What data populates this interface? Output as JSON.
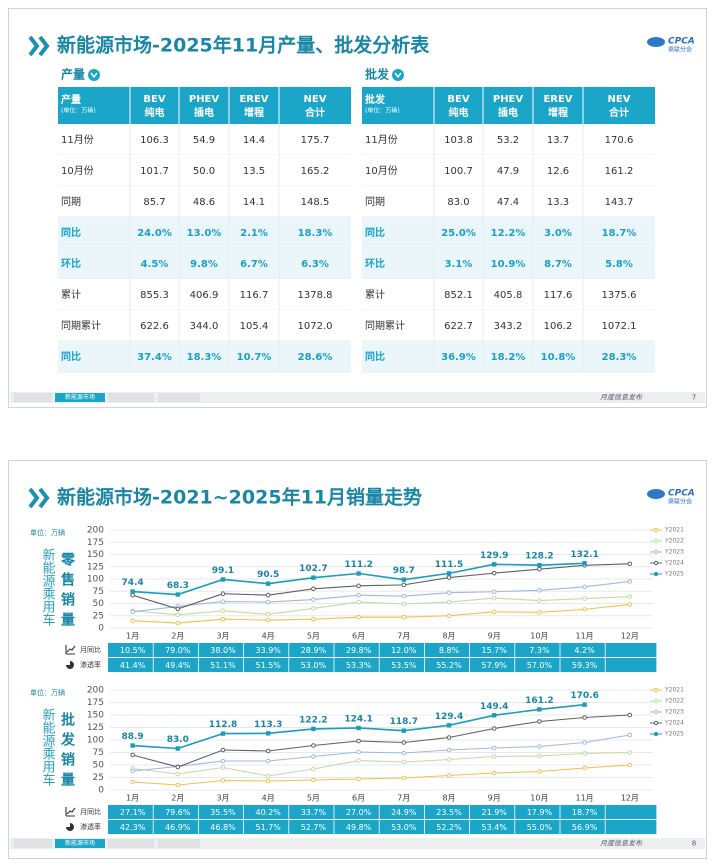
{
  "slide1": {
    "title": "新能源市场-2025年11月产量、批发分析表",
    "logo": {
      "text": "CPCA",
      "sub": "乘联分会"
    },
    "footer_tab": "新能源市场",
    "footer_note": "月度信息发布",
    "page": "7",
    "tables": [
      {
        "section": "产量",
        "corner": "产量",
        "unit": "(单位：万辆)",
        "columns": [
          {
            "code": "BEV",
            "name": "纯电"
          },
          {
            "code": "PHEV",
            "name": "插电"
          },
          {
            "code": "EREV",
            "name": "增程"
          },
          {
            "code": "NEV",
            "name": "合计"
          }
        ],
        "rows": [
          [
            "11月份",
            "106.3",
            "54.9",
            "14.4",
            "175.7"
          ],
          [
            "10月份",
            "101.7",
            "50.0",
            "13.5",
            "165.2"
          ],
          [
            "同期",
            "85.7",
            "48.6",
            "14.1",
            "148.5"
          ],
          [
            "同比",
            "24.0%",
            "13.0%",
            "2.1%",
            "18.3%"
          ],
          [
            "环比",
            "4.5%",
            "9.8%",
            "6.7%",
            "6.3%"
          ],
          [
            "累计",
            "855.3",
            "406.9",
            "116.7",
            "1378.8"
          ],
          [
            "同期累计",
            "622.6",
            "344.0",
            "105.4",
            "1072.0"
          ],
          [
            "同比",
            "37.4%",
            "18.3%",
            "10.7%",
            "28.6%"
          ]
        ]
      },
      {
        "section": "批发",
        "corner": "批发",
        "unit": "(单位：万辆)",
        "columns": [
          {
            "code": "BEV",
            "name": "纯电"
          },
          {
            "code": "PHEV",
            "name": "插电"
          },
          {
            "code": "EREV",
            "name": "增程"
          },
          {
            "code": "NEV",
            "name": "合计"
          }
        ],
        "rows": [
          [
            "11月份",
            "103.8",
            "53.2",
            "13.7",
            "170.6"
          ],
          [
            "10月份",
            "100.7",
            "47.9",
            "12.6",
            "161.2"
          ],
          [
            "同期",
            "83.0",
            "47.4",
            "13.3",
            "143.7"
          ],
          [
            "同比",
            "25.0%",
            "12.2%",
            "3.0%",
            "18.7%"
          ],
          [
            "环比",
            "3.1%",
            "10.9%",
            "8.7%",
            "5.8%"
          ],
          [
            "累计",
            "852.1",
            "405.8",
            "117.6",
            "1375.6"
          ],
          [
            "同期累计",
            "622.7",
            "343.2",
            "106.2",
            "1072.1"
          ],
          [
            "同比",
            "36.9%",
            "18.2%",
            "10.8%",
            "28.3%"
          ]
        ]
      }
    ]
  },
  "slide2": {
    "title": "新能源市场-2021~2025年11月销量走势",
    "logo": {
      "text": "CPCA",
      "sub": "乘联分会"
    },
    "footer_tab": "新能源市场",
    "footer_note": "月度信息发布",
    "page": "8"
  },
  "chart_data": [
    {
      "type": "line",
      "title": "零售销量",
      "unit": "单位：万辆",
      "side_label": "新能源乘用车",
      "categories": [
        "1月",
        "2月",
        "3月",
        "4月",
        "5月",
        "6月",
        "7月",
        "8月",
        "9月",
        "10月",
        "11月",
        "12月"
      ],
      "ylim": [
        0,
        200
      ],
      "yticks": [
        0,
        25,
        50,
        75,
        100,
        125,
        150,
        175,
        200
      ],
      "grid": true,
      "legend": "right",
      "series": [
        {
          "name": "Y2021",
          "color": "#f2c14e",
          "values": [
            15,
            10,
            18,
            16,
            18,
            22,
            22,
            25,
            33,
            32,
            38,
            48
          ]
        },
        {
          "name": "Y2022",
          "color": "#c7d8a6",
          "values": [
            35,
            27,
            35,
            28,
            40,
            53,
            49,
            53,
            61,
            56,
            60,
            64
          ]
        },
        {
          "name": "Y2023",
          "color": "#9fb9e3",
          "values": [
            33,
            44,
            54,
            53,
            58,
            67,
            65,
            72,
            74,
            77,
            84,
            95
          ]
        },
        {
          "name": "Y2024",
          "color": "#606060",
          "values": [
            67,
            39,
            70,
            67,
            80,
            86,
            88,
            103,
            112,
            120,
            128,
            131
          ]
        },
        {
          "name": "Y2025",
          "color": "#1b9cbb",
          "values": [
            74.4,
            68.3,
            99.1,
            90.5,
            102.7,
            111.2,
            98.7,
            111.5,
            129.9,
            128.2,
            132.1,
            null
          ]
        }
      ],
      "rows": [
        {
          "label": "月同比",
          "values": [
            "10.5%",
            "79.0%",
            "38.0%",
            "33.9%",
            "28.9%",
            "29.8%",
            "12.0%",
            "8.8%",
            "15.7%",
            "7.3%",
            "4.2%"
          ]
        },
        {
          "label": "渗透率",
          "values": [
            "41.4%",
            "49.4%",
            "51.1%",
            "51.5%",
            "53.0%",
            "53.3%",
            "53.5%",
            "55.2%",
            "57.9%",
            "57.0%",
            "59.3%"
          ]
        }
      ]
    },
    {
      "type": "line",
      "title": "批发销量",
      "unit": "单位：万辆",
      "side_label": "新能源乘用车",
      "categories": [
        "1月",
        "2月",
        "3月",
        "4月",
        "5月",
        "6月",
        "7月",
        "8月",
        "9月",
        "10月",
        "11月",
        "12月"
      ],
      "ylim": [
        0,
        200
      ],
      "yticks": [
        0,
        25,
        50,
        75,
        100,
        125,
        150,
        175,
        200
      ],
      "grid": true,
      "legend": "right",
      "series": [
        {
          "name": "Y2021",
          "color": "#f2c14e",
          "values": [
            16,
            10,
            19,
            18,
            20,
            22,
            24,
            29,
            34,
            37,
            44,
            50
          ]
        },
        {
          "name": "Y2022",
          "color": "#c7d8a6",
          "values": [
            43,
            32,
            45,
            28,
            42,
            59,
            56,
            61,
            67,
            68,
            73,
            75
          ]
        },
        {
          "name": "Y2023",
          "color": "#9fb9e3",
          "values": [
            38,
            47,
            58,
            58,
            67,
            76,
            74,
            80,
            84,
            87,
            95,
            110
          ]
        },
        {
          "name": "Y2024",
          "color": "#606060",
          "values": [
            70,
            46,
            80,
            78,
            89,
            98,
            95,
            105,
            123,
            137,
            145,
            150
          ]
        },
        {
          "name": "Y2025",
          "color": "#1b9cbb",
          "values": [
            88.9,
            83.0,
            112.8,
            113.3,
            122.2,
            124.1,
            118.7,
            129.4,
            149.4,
            161.2,
            170.6,
            null
          ],
          "value_labels": [
            "88.9",
            "83.0",
            "112.8",
            "113.3",
            "122.2",
            "124.1",
            "118.7",
            "129.4",
            "149.4",
            "161.2",
            "170.6",
            null
          ]
        }
      ],
      "rows": [
        {
          "label": "月同比",
          "values": [
            "27.1%",
            "79.6%",
            "35.5%",
            "40.2%",
            "33.7%",
            "27.0%",
            "24.9%",
            "23.5%",
            "21.9%",
            "17.9%",
            "18.7%"
          ]
        },
        {
          "label": "渗透率",
          "values": [
            "42.3%",
            "46.9%",
            "46.8%",
            "51.7%",
            "52.7%",
            "49.8%",
            "53.0%",
            "52.2%",
            "53.4%",
            "55.0%",
            "56.9%"
          ]
        }
      ]
    }
  ]
}
